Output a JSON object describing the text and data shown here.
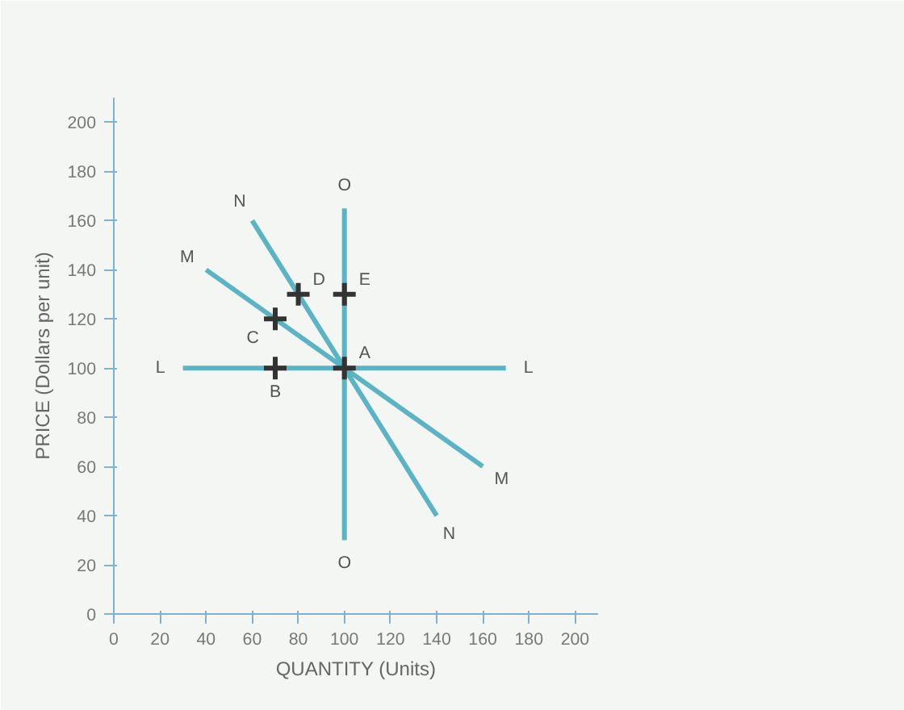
{
  "chart_data": {
    "type": "line",
    "xlabel": "QUANTITY (Units)",
    "ylabel": "PRICE (Dollars per unit)",
    "xlim": [
      0,
      210
    ],
    "ylim": [
      0,
      210
    ],
    "xticks": [
      0,
      20,
      40,
      60,
      80,
      100,
      120,
      140,
      160,
      180,
      200
    ],
    "yticks": [
      0,
      20,
      40,
      60,
      80,
      100,
      120,
      140,
      160,
      180,
      200
    ],
    "grid": false,
    "series": [
      {
        "name": "L",
        "color": "#5ab4c4",
        "x": [
          30,
          170
        ],
        "values": [
          100,
          100
        ]
      },
      {
        "name": "M",
        "color": "#5ab4c4",
        "x": [
          40,
          160
        ],
        "values": [
          140,
          60
        ]
      },
      {
        "name": "N",
        "color": "#5ab4c4",
        "x": [
          60,
          140
        ],
        "values": [
          160,
          40
        ]
      },
      {
        "name": "O",
        "color": "#5ab4c4",
        "x": [
          100,
          100
        ],
        "values": [
          165,
          30
        ]
      },
      {
        "name": "A",
        "type": "scatter",
        "marker": "cross",
        "color": "#333333",
        "x": [
          100
        ],
        "values": [
          100
        ]
      },
      {
        "name": "B",
        "type": "scatter",
        "marker": "cross",
        "color": "#333333",
        "x": [
          70
        ],
        "values": [
          100
        ]
      },
      {
        "name": "C",
        "type": "scatter",
        "marker": "cross",
        "color": "#333333",
        "x": [
          70
        ],
        "values": [
          120
        ]
      },
      {
        "name": "D",
        "type": "scatter",
        "marker": "cross",
        "color": "#333333",
        "x": [
          80
        ],
        "values": [
          130
        ]
      },
      {
        "name": "E",
        "type": "scatter",
        "marker": "cross",
        "color": "#333333",
        "x": [
          100
        ],
        "values": [
          130
        ]
      }
    ]
  }
}
